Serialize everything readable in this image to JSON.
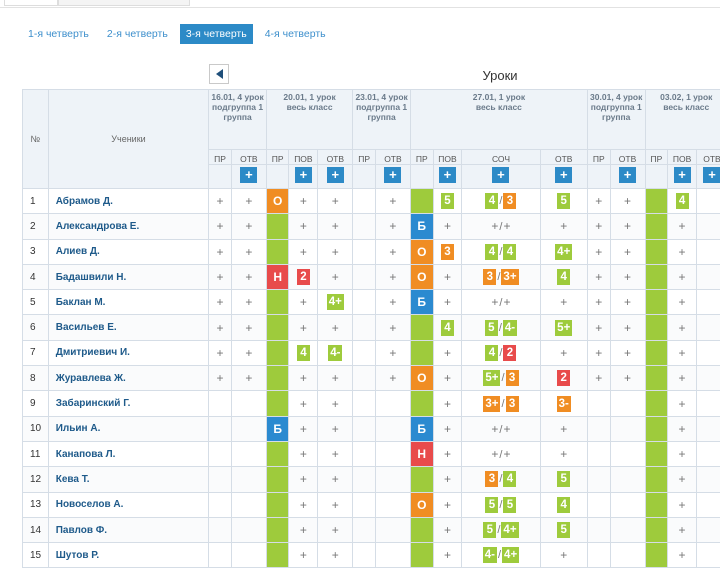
{
  "quarters": [
    {
      "label": "1-я четверть",
      "active": false
    },
    {
      "label": "2-я четверть",
      "active": false
    },
    {
      "label": "3-я четверть",
      "active": true
    },
    {
      "label": "4-я четверть",
      "active": false
    }
  ],
  "title": "Уроки",
  "headers": {
    "no": "№",
    "students": "Ученики"
  },
  "lessons": [
    {
      "date": "16.01, 4 урок",
      "group": "подгруппа 1 группа",
      "cols": [
        "ПР",
        "ОТВ"
      ]
    },
    {
      "date": "20.01, 1 урок",
      "group": "весь класс",
      "cols": [
        "ПР",
        "ПОВ",
        "ОТВ"
      ]
    },
    {
      "date": "23.01, 4 урок",
      "group": "подгруппа 1 группа",
      "cols": [
        "ПР",
        "ОТВ"
      ]
    },
    {
      "date": "27.01, 1 урок",
      "group": "весь класс",
      "cols": [
        "ПР",
        "ПОВ",
        "СОЧ",
        "ОТВ"
      ]
    },
    {
      "date": "30.01, 4 урок",
      "group": "подгруппа 1 группа",
      "cols": [
        "ПР",
        "ОТВ"
      ]
    },
    {
      "date": "03.02, 1 урок",
      "group": "весь класс",
      "cols": [
        "ПР",
        "ПОВ",
        "ОТВ"
      ]
    }
  ],
  "add_label": "+",
  "colors": {
    "green": "#9ecb3c",
    "orange": "#f08d23",
    "blue": "#2b8ad0",
    "red": "#e84b4b",
    "accent": "#2c8ac7"
  },
  "students": [
    {
      "num": "1",
      "name": "Абрамов Д.",
      "cells": [
        {
          "t": "p"
        },
        {
          "t": "p"
        },
        {
          "t": "pr",
          "c": "orange",
          "v": "О"
        },
        {
          "t": "p"
        },
        {
          "t": "p"
        },
        {
          "t": "e"
        },
        {
          "t": "p"
        },
        {
          "t": "pr",
          "c": "green"
        },
        {
          "t": "grades",
          "g": [
            {
              "v": "5",
              "c": "green"
            }
          ]
        },
        {
          "t": "grades",
          "g": [
            {
              "v": "4",
              "c": "green"
            },
            {
              "v": "3",
              "c": "orange"
            }
          ]
        },
        {
          "t": "grades",
          "g": [
            {
              "v": "5",
              "c": "green"
            }
          ]
        },
        {
          "t": "p"
        },
        {
          "t": "p"
        },
        {
          "t": "pr",
          "c": "green"
        },
        {
          "t": "grades",
          "g": [
            {
              "v": "4",
              "c": "green"
            }
          ]
        },
        {
          "t": "e"
        }
      ]
    },
    {
      "num": "2",
      "name": "Александрова Е.",
      "cells": [
        {
          "t": "p"
        },
        {
          "t": "p"
        },
        {
          "t": "pr",
          "c": "green"
        },
        {
          "t": "p"
        },
        {
          "t": "p"
        },
        {
          "t": "e"
        },
        {
          "t": "p"
        },
        {
          "t": "pr",
          "c": "blue",
          "v": "Б"
        },
        {
          "t": "p"
        },
        {
          "t": "pp"
        },
        {
          "t": "p"
        },
        {
          "t": "p"
        },
        {
          "t": "p"
        },
        {
          "t": "pr",
          "c": "green"
        },
        {
          "t": "p"
        },
        {
          "t": "e"
        }
      ]
    },
    {
      "num": "3",
      "name": "Алиев Д.",
      "cells": [
        {
          "t": "p"
        },
        {
          "t": "p"
        },
        {
          "t": "pr",
          "c": "green"
        },
        {
          "t": "p"
        },
        {
          "t": "p"
        },
        {
          "t": "e"
        },
        {
          "t": "p"
        },
        {
          "t": "pr",
          "c": "orange",
          "v": "О"
        },
        {
          "t": "grades",
          "g": [
            {
              "v": "3",
              "c": "orange"
            }
          ]
        },
        {
          "t": "grades",
          "g": [
            {
              "v": "4",
              "c": "green"
            },
            {
              "v": "4",
              "c": "green"
            }
          ]
        },
        {
          "t": "grades",
          "g": [
            {
              "v": "4+",
              "c": "green"
            }
          ]
        },
        {
          "t": "p"
        },
        {
          "t": "p"
        },
        {
          "t": "pr",
          "c": "green"
        },
        {
          "t": "p"
        },
        {
          "t": "e"
        }
      ]
    },
    {
      "num": "4",
      "name": "Бадашвили Н.",
      "cells": [
        {
          "t": "p"
        },
        {
          "t": "p"
        },
        {
          "t": "pr",
          "c": "red",
          "v": "Н"
        },
        {
          "t": "grades",
          "g": [
            {
              "v": "2",
              "c": "red"
            }
          ]
        },
        {
          "t": "p"
        },
        {
          "t": "e"
        },
        {
          "t": "p"
        },
        {
          "t": "pr",
          "c": "orange",
          "v": "О"
        },
        {
          "t": "p"
        },
        {
          "t": "grades",
          "g": [
            {
              "v": "3",
              "c": "orange"
            },
            {
              "v": "3+",
              "c": "orange"
            }
          ]
        },
        {
          "t": "grades",
          "g": [
            {
              "v": "4",
              "c": "green"
            }
          ]
        },
        {
          "t": "p"
        },
        {
          "t": "p"
        },
        {
          "t": "pr",
          "c": "green"
        },
        {
          "t": "p"
        },
        {
          "t": "e"
        }
      ]
    },
    {
      "num": "5",
      "name": "Баклан М.",
      "cells": [
        {
          "t": "p"
        },
        {
          "t": "p"
        },
        {
          "t": "pr",
          "c": "green"
        },
        {
          "t": "p"
        },
        {
          "t": "grades",
          "g": [
            {
              "v": "4+",
              "c": "green"
            }
          ]
        },
        {
          "t": "e"
        },
        {
          "t": "p"
        },
        {
          "t": "pr",
          "c": "blue",
          "v": "Б"
        },
        {
          "t": "p"
        },
        {
          "t": "pp"
        },
        {
          "t": "p"
        },
        {
          "t": "p"
        },
        {
          "t": "p"
        },
        {
          "t": "pr",
          "c": "green"
        },
        {
          "t": "p"
        },
        {
          "t": "e"
        }
      ]
    },
    {
      "num": "6",
      "name": "Васильев Е.",
      "cells": [
        {
          "t": "p"
        },
        {
          "t": "p"
        },
        {
          "t": "pr",
          "c": "green"
        },
        {
          "t": "p"
        },
        {
          "t": "p"
        },
        {
          "t": "e"
        },
        {
          "t": "p"
        },
        {
          "t": "pr",
          "c": "green"
        },
        {
          "t": "grades",
          "g": [
            {
              "v": "4",
              "c": "green"
            }
          ]
        },
        {
          "t": "grades",
          "g": [
            {
              "v": "5",
              "c": "green"
            },
            {
              "v": "4-",
              "c": "green"
            }
          ]
        },
        {
          "t": "grades",
          "g": [
            {
              "v": "5+",
              "c": "green"
            }
          ]
        },
        {
          "t": "p"
        },
        {
          "t": "p"
        },
        {
          "t": "pr",
          "c": "green"
        },
        {
          "t": "p"
        },
        {
          "t": "e"
        }
      ]
    },
    {
      "num": "7",
      "name": "Дмитриевич И.",
      "cells": [
        {
          "t": "p"
        },
        {
          "t": "p"
        },
        {
          "t": "pr",
          "c": "green"
        },
        {
          "t": "grades",
          "g": [
            {
              "v": "4",
              "c": "green"
            }
          ]
        },
        {
          "t": "grades",
          "g": [
            {
              "v": "4-",
              "c": "green"
            }
          ]
        },
        {
          "t": "e"
        },
        {
          "t": "p"
        },
        {
          "t": "pr",
          "c": "green"
        },
        {
          "t": "p"
        },
        {
          "t": "grades",
          "g": [
            {
              "v": "4",
              "c": "green"
            },
            {
              "v": "2",
              "c": "red"
            }
          ]
        },
        {
          "t": "p"
        },
        {
          "t": "p"
        },
        {
          "t": "p"
        },
        {
          "t": "pr",
          "c": "green"
        },
        {
          "t": "p"
        },
        {
          "t": "e"
        }
      ]
    },
    {
      "num": "8",
      "name": "Журавлева Ж.",
      "cells": [
        {
          "t": "p"
        },
        {
          "t": "p"
        },
        {
          "t": "pr",
          "c": "green"
        },
        {
          "t": "p"
        },
        {
          "t": "p"
        },
        {
          "t": "e"
        },
        {
          "t": "p"
        },
        {
          "t": "pr",
          "c": "orange",
          "v": "О"
        },
        {
          "t": "p"
        },
        {
          "t": "grades",
          "g": [
            {
              "v": "5+",
              "c": "green"
            },
            {
              "v": "3",
              "c": "orange"
            }
          ]
        },
        {
          "t": "grades",
          "g": [
            {
              "v": "2",
              "c": "red"
            }
          ]
        },
        {
          "t": "p"
        },
        {
          "t": "p"
        },
        {
          "t": "pr",
          "c": "green"
        },
        {
          "t": "p"
        },
        {
          "t": "e"
        }
      ]
    },
    {
      "num": "9",
      "name": "Забаринский Г.",
      "cells": [
        {
          "t": "e"
        },
        {
          "t": "e"
        },
        {
          "t": "pr",
          "c": "green"
        },
        {
          "t": "p"
        },
        {
          "t": "p"
        },
        {
          "t": "e"
        },
        {
          "t": "e"
        },
        {
          "t": "pr",
          "c": "green"
        },
        {
          "t": "p"
        },
        {
          "t": "grades",
          "g": [
            {
              "v": "3+",
              "c": "orange"
            },
            {
              "v": "3",
              "c": "orange"
            }
          ]
        },
        {
          "t": "grades",
          "g": [
            {
              "v": "3-",
              "c": "orange"
            }
          ]
        },
        {
          "t": "e"
        },
        {
          "t": "e"
        },
        {
          "t": "pr",
          "c": "green"
        },
        {
          "t": "p"
        },
        {
          "t": "e"
        }
      ]
    },
    {
      "num": "10",
      "name": "Ильин А.",
      "cells": [
        {
          "t": "e"
        },
        {
          "t": "e"
        },
        {
          "t": "pr",
          "c": "blue",
          "v": "Б"
        },
        {
          "t": "p"
        },
        {
          "t": "p"
        },
        {
          "t": "e"
        },
        {
          "t": "e"
        },
        {
          "t": "pr",
          "c": "blue",
          "v": "Б"
        },
        {
          "t": "p"
        },
        {
          "t": "pp"
        },
        {
          "t": "p"
        },
        {
          "t": "e"
        },
        {
          "t": "e"
        },
        {
          "t": "pr",
          "c": "green"
        },
        {
          "t": "p"
        },
        {
          "t": "e"
        }
      ]
    },
    {
      "num": "11",
      "name": "Канапова Л.",
      "cells": [
        {
          "t": "e"
        },
        {
          "t": "e"
        },
        {
          "t": "pr",
          "c": "green"
        },
        {
          "t": "p"
        },
        {
          "t": "p"
        },
        {
          "t": "e"
        },
        {
          "t": "e"
        },
        {
          "t": "pr",
          "c": "red",
          "v": "Н"
        },
        {
          "t": "p"
        },
        {
          "t": "pp"
        },
        {
          "t": "p"
        },
        {
          "t": "e"
        },
        {
          "t": "e"
        },
        {
          "t": "pr",
          "c": "green"
        },
        {
          "t": "p"
        },
        {
          "t": "e"
        }
      ]
    },
    {
      "num": "12",
      "name": "Кева Т.",
      "cells": [
        {
          "t": "e"
        },
        {
          "t": "e"
        },
        {
          "t": "pr",
          "c": "green"
        },
        {
          "t": "p"
        },
        {
          "t": "p"
        },
        {
          "t": "e"
        },
        {
          "t": "e"
        },
        {
          "t": "pr",
          "c": "green"
        },
        {
          "t": "p"
        },
        {
          "t": "grades",
          "g": [
            {
              "v": "3",
              "c": "orange"
            },
            {
              "v": "4",
              "c": "green"
            }
          ]
        },
        {
          "t": "grades",
          "g": [
            {
              "v": "5",
              "c": "green"
            }
          ]
        },
        {
          "t": "e"
        },
        {
          "t": "e"
        },
        {
          "t": "pr",
          "c": "green"
        },
        {
          "t": "p"
        },
        {
          "t": "e"
        }
      ]
    },
    {
      "num": "13",
      "name": "Новоселов А.",
      "cells": [
        {
          "t": "e"
        },
        {
          "t": "e"
        },
        {
          "t": "pr",
          "c": "green"
        },
        {
          "t": "p"
        },
        {
          "t": "p"
        },
        {
          "t": "e"
        },
        {
          "t": "e"
        },
        {
          "t": "pr",
          "c": "orange",
          "v": "О"
        },
        {
          "t": "p"
        },
        {
          "t": "grades",
          "g": [
            {
              "v": "5",
              "c": "green"
            },
            {
              "v": "5",
              "c": "green"
            }
          ]
        },
        {
          "t": "grades",
          "g": [
            {
              "v": "4",
              "c": "green"
            }
          ]
        },
        {
          "t": "e"
        },
        {
          "t": "e"
        },
        {
          "t": "pr",
          "c": "green"
        },
        {
          "t": "p"
        },
        {
          "t": "e"
        }
      ]
    },
    {
      "num": "14",
      "name": "Павлов Ф.",
      "cells": [
        {
          "t": "e"
        },
        {
          "t": "e"
        },
        {
          "t": "pr",
          "c": "green"
        },
        {
          "t": "p"
        },
        {
          "t": "p"
        },
        {
          "t": "e"
        },
        {
          "t": "e"
        },
        {
          "t": "pr",
          "c": "green"
        },
        {
          "t": "p"
        },
        {
          "t": "grades",
          "g": [
            {
              "v": "5",
              "c": "green"
            },
            {
              "v": "4+",
              "c": "green"
            }
          ]
        },
        {
          "t": "grades",
          "g": [
            {
              "v": "5",
              "c": "green"
            }
          ]
        },
        {
          "t": "e"
        },
        {
          "t": "e"
        },
        {
          "t": "pr",
          "c": "green"
        },
        {
          "t": "p"
        },
        {
          "t": "e"
        }
      ]
    },
    {
      "num": "15",
      "name": "Шутов Р.",
      "cells": [
        {
          "t": "e"
        },
        {
          "t": "e"
        },
        {
          "t": "pr",
          "c": "green"
        },
        {
          "t": "p"
        },
        {
          "t": "p"
        },
        {
          "t": "e"
        },
        {
          "t": "e"
        },
        {
          "t": "pr",
          "c": "green"
        },
        {
          "t": "p"
        },
        {
          "t": "grades",
          "g": [
            {
              "v": "4-",
              "c": "green"
            },
            {
              "v": "4+",
              "c": "green"
            }
          ]
        },
        {
          "t": "p"
        },
        {
          "t": "e"
        },
        {
          "t": "e"
        },
        {
          "t": "pr",
          "c": "green"
        },
        {
          "t": "p"
        },
        {
          "t": "e"
        }
      ]
    }
  ]
}
